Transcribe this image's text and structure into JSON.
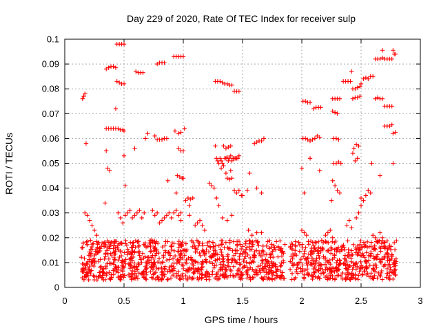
{
  "chart_data": {
    "type": "scatter",
    "title": "Day 229 of 2020, Rate Of TEC Index for receiver sulp",
    "xlabel": "GPS time / hours",
    "ylabel": "ROTI / TECUs",
    "xlim": [
      0,
      3
    ],
    "ylim": [
      0,
      0.1
    ],
    "x_ticks": [
      0,
      0.5,
      1,
      1.5,
      2,
      2.5,
      3
    ],
    "x_tick_labels": [
      "0",
      "0.5",
      "1",
      "1.5",
      "2",
      "2.5",
      "3"
    ],
    "y_ticks": [
      0,
      0.01,
      0.02,
      0.03,
      0.04,
      0.05,
      0.06,
      0.07,
      0.08,
      0.09,
      0.1
    ],
    "y_tick_labels": [
      "0",
      "0.01",
      "0.02",
      "0.03",
      "0.04",
      "0.05",
      "0.06",
      "0.07",
      "0.08",
      "0.09",
      "0.1"
    ],
    "grid": true,
    "marker": "plus",
    "color": "#ff0000",
    "points": [
      [
        0.15,
        0.076
      ],
      [
        0.16,
        0.077
      ],
      [
        0.17,
        0.078
      ],
      [
        0.18,
        0.058
      ],
      [
        0.35,
        0.088
      ],
      [
        0.37,
        0.0885
      ],
      [
        0.39,
        0.089
      ],
      [
        0.41,
        0.089
      ],
      [
        0.43,
        0.0885
      ],
      [
        0.44,
        0.098
      ],
      [
        0.46,
        0.098
      ],
      [
        0.48,
        0.098
      ],
      [
        0.5,
        0.098
      ],
      [
        0.44,
        0.083
      ],
      [
        0.46,
        0.0825
      ],
      [
        0.48,
        0.082
      ],
      [
        0.5,
        0.082
      ],
      [
        0.43,
        0.072
      ],
      [
        0.35,
        0.064
      ],
      [
        0.37,
        0.064
      ],
      [
        0.39,
        0.064
      ],
      [
        0.41,
        0.064
      ],
      [
        0.43,
        0.064
      ],
      [
        0.45,
        0.064
      ],
      [
        0.47,
        0.0635
      ],
      [
        0.49,
        0.0635
      ],
      [
        0.5,
        0.063
      ],
      [
        0.35,
        0.055
      ],
      [
        0.36,
        0.048
      ],
      [
        0.38,
        0.047
      ],
      [
        0.34,
        0.034
      ],
      [
        0.5,
        0.053
      ],
      [
        0.51,
        0.041
      ],
      [
        0.6,
        0.087
      ],
      [
        0.62,
        0.0865
      ],
      [
        0.64,
        0.0865
      ],
      [
        0.66,
        0.0865
      ],
      [
        0.59,
        0.056
      ],
      [
        0.68,
        0.06
      ],
      [
        0.7,
        0.062
      ],
      [
        0.78,
        0.09
      ],
      [
        0.8,
        0.0905
      ],
      [
        0.82,
        0.0905
      ],
      [
        0.84,
        0.0905
      ],
      [
        0.76,
        0.061
      ],
      [
        0.78,
        0.0595
      ],
      [
        0.8,
        0.0595
      ],
      [
        0.82,
        0.0595
      ],
      [
        0.84,
        0.06
      ],
      [
        0.86,
        0.06
      ],
      [
        0.92,
        0.093
      ],
      [
        0.94,
        0.093
      ],
      [
        0.96,
        0.093
      ],
      [
        0.98,
        0.093
      ],
      [
        1.0,
        0.093
      ],
      [
        0.93,
        0.063
      ],
      [
        0.96,
        0.062
      ],
      [
        0.98,
        0.0625
      ],
      [
        1.01,
        0.064
      ],
      [
        0.96,
        0.056
      ],
      [
        0.98,
        0.055
      ],
      [
        1.0,
        0.055
      ],
      [
        0.95,
        0.045
      ],
      [
        0.97,
        0.0445
      ],
      [
        0.99,
        0.044
      ],
      [
        1.0,
        0.044
      ],
      [
        0.87,
        0.043
      ],
      [
        0.94,
        0.038
      ],
      [
        0.98,
        0.03
      ],
      [
        1.02,
        0.035
      ],
      [
        1.04,
        0.036
      ],
      [
        1.06,
        0.0355
      ],
      [
        1.08,
        0.036
      ],
      [
        1.05,
        0.033
      ],
      [
        1.27,
        0.083
      ],
      [
        1.29,
        0.083
      ],
      [
        1.31,
        0.083
      ],
      [
        1.33,
        0.0825
      ],
      [
        1.35,
        0.082
      ],
      [
        1.37,
        0.082
      ],
      [
        1.39,
        0.0815
      ],
      [
        1.41,
        0.0815
      ],
      [
        1.43,
        0.079
      ],
      [
        1.45,
        0.079
      ],
      [
        1.47,
        0.079
      ],
      [
        1.27,
        0.057
      ],
      [
        1.28,
        0.052
      ],
      [
        1.29,
        0.051
      ],
      [
        1.3,
        0.05
      ],
      [
        1.31,
        0.052
      ],
      [
        1.32,
        0.051
      ],
      [
        1.33,
        0.05
      ],
      [
        1.34,
        0.049
      ],
      [
        1.35,
        0.052
      ],
      [
        1.36,
        0.052
      ],
      [
        1.37,
        0.0525
      ],
      [
        1.38,
        0.051
      ],
      [
        1.39,
        0.052
      ],
      [
        1.4,
        0.053
      ],
      [
        1.41,
        0.051
      ],
      [
        1.42,
        0.052
      ],
      [
        1.43,
        0.052
      ],
      [
        1.44,
        0.052
      ],
      [
        1.45,
        0.052
      ],
      [
        1.46,
        0.052
      ],
      [
        1.47,
        0.053
      ],
      [
        1.34,
        0.057
      ],
      [
        1.36,
        0.056
      ],
      [
        1.38,
        0.0565
      ],
      [
        1.4,
        0.057
      ],
      [
        1.37,
        0.044
      ],
      [
        1.39,
        0.0435
      ],
      [
        1.41,
        0.044
      ],
      [
        1.43,
        0.039
      ],
      [
        1.45,
        0.038
      ],
      [
        1.47,
        0.039
      ],
      [
        1.49,
        0.037
      ],
      [
        1.5,
        0.037
      ],
      [
        1.22,
        0.042
      ],
      [
        1.24,
        0.041
      ],
      [
        1.26,
        0.04
      ],
      [
        1.28,
        0.036
      ],
      [
        1.3,
        0.033
      ],
      [
        1.32,
        0.048
      ],
      [
        1.36,
        0.046
      ],
      [
        1.4,
        0.047
      ],
      [
        1.54,
        0.039
      ],
      [
        1.56,
        0.046
      ],
      [
        1.6,
        0.058
      ],
      [
        1.62,
        0.0585
      ],
      [
        1.64,
        0.059
      ],
      [
        1.66,
        0.059
      ],
      [
        1.68,
        0.06
      ],
      [
        1.62,
        0.04
      ],
      [
        1.66,
        0.038
      ],
      [
        2.01,
        0.075
      ],
      [
        2.03,
        0.075
      ],
      [
        2.05,
        0.0745
      ],
      [
        2.07,
        0.0745
      ],
      [
        2.1,
        0.072
      ],
      [
        2.12,
        0.0725
      ],
      [
        2.14,
        0.0725
      ],
      [
        2.16,
        0.0725
      ],
      [
        2.01,
        0.06
      ],
      [
        2.03,
        0.06
      ],
      [
        2.05,
        0.0595
      ],
      [
        2.07,
        0.059
      ],
      [
        2.09,
        0.0595
      ],
      [
        2.11,
        0.06
      ],
      [
        2.13,
        0.061
      ],
      [
        2.15,
        0.0605
      ],
      [
        2.0,
        0.048
      ],
      [
        2.02,
        0.038
      ],
      [
        2.07,
        0.052
      ],
      [
        2.15,
        0.047
      ],
      [
        2.26,
        0.076
      ],
      [
        2.28,
        0.076
      ],
      [
        2.3,
        0.076
      ],
      [
        2.32,
        0.076
      ],
      [
        2.26,
        0.071
      ],
      [
        2.28,
        0.0705
      ],
      [
        2.3,
        0.07
      ],
      [
        2.27,
        0.06
      ],
      [
        2.29,
        0.06
      ],
      [
        2.31,
        0.0595
      ],
      [
        2.27,
        0.05
      ],
      [
        2.29,
        0.05
      ],
      [
        2.31,
        0.0505
      ],
      [
        2.33,
        0.05
      ],
      [
        2.26,
        0.043
      ],
      [
        2.28,
        0.041
      ],
      [
        2.3,
        0.039
      ],
      [
        2.25,
        0.035
      ],
      [
        2.32,
        0.038
      ],
      [
        2.35,
        0.083
      ],
      [
        2.37,
        0.083
      ],
      [
        2.39,
        0.083
      ],
      [
        2.41,
        0.083
      ],
      [
        2.42,
        0.087
      ],
      [
        2.43,
        0.08
      ],
      [
        2.45,
        0.08
      ],
      [
        2.47,
        0.0805
      ],
      [
        2.49,
        0.081
      ],
      [
        2.43,
        0.076
      ],
      [
        2.45,
        0.0765
      ],
      [
        2.47,
        0.0765
      ],
      [
        2.49,
        0.077
      ],
      [
        2.5,
        0.082
      ],
      [
        2.52,
        0.084
      ],
      [
        2.54,
        0.0845
      ],
      [
        2.56,
        0.084
      ],
      [
        2.58,
        0.085
      ],
      [
        2.6,
        0.085
      ],
      [
        2.43,
        0.054
      ],
      [
        2.44,
        0.056
      ],
      [
        2.46,
        0.0575
      ],
      [
        2.48,
        0.057
      ],
      [
        2.47,
        0.052
      ],
      [
        2.45,
        0.051
      ],
      [
        2.5,
        0.036
      ],
      [
        2.52,
        0.035
      ],
      [
        2.54,
        0.037
      ],
      [
        2.56,
        0.039
      ],
      [
        2.58,
        0.038
      ],
      [
        2.5,
        0.033
      ],
      [
        2.59,
        0.05
      ],
      [
        2.62,
        0.076
      ],
      [
        2.64,
        0.0765
      ],
      [
        2.66,
        0.076
      ],
      [
        2.68,
        0.076
      ],
      [
        2.62,
        0.092
      ],
      [
        2.64,
        0.092
      ],
      [
        2.66,
        0.092
      ],
      [
        2.68,
        0.0925
      ],
      [
        2.7,
        0.092
      ],
      [
        2.72,
        0.092
      ],
      [
        2.74,
        0.092
      ],
      [
        2.76,
        0.092
      ],
      [
        2.68,
        0.0955
      ],
      [
        2.77,
        0.0955
      ],
      [
        2.78,
        0.094
      ],
      [
        2.79,
        0.094
      ],
      [
        2.7,
        0.073
      ],
      [
        2.72,
        0.073
      ],
      [
        2.74,
        0.073
      ],
      [
        2.76,
        0.073
      ],
      [
        2.7,
        0.065
      ],
      [
        2.72,
        0.065
      ],
      [
        2.74,
        0.065
      ],
      [
        2.76,
        0.0655
      ],
      [
        2.77,
        0.062
      ],
      [
        2.79,
        0.0625
      ],
      [
        2.77,
        0.05
      ],
      [
        2.66,
        0.045
      ],
      [
        0.17,
        0.03
      ],
      [
        0.19,
        0.029
      ],
      [
        0.21,
        0.027
      ],
      [
        0.23,
        0.025
      ],
      [
        0.25,
        0.023
      ],
      [
        0.27,
        0.021
      ],
      [
        0.45,
        0.03
      ],
      [
        0.47,
        0.028
      ],
      [
        0.49,
        0.026
      ],
      [
        0.51,
        0.029
      ],
      [
        0.53,
        0.03
      ],
      [
        0.55,
        0.031
      ],
      [
        0.57,
        0.028
      ],
      [
        0.59,
        0.029
      ],
      [
        0.61,
        0.03
      ],
      [
        0.63,
        0.031
      ],
      [
        0.65,
        0.028
      ],
      [
        0.67,
        0.03
      ],
      [
        0.74,
        0.031
      ],
      [
        0.76,
        0.029
      ],
      [
        0.78,
        0.03
      ],
      [
        0.8,
        0.026
      ],
      [
        0.82,
        0.027
      ],
      [
        0.84,
        0.028
      ],
      [
        0.86,
        0.029
      ],
      [
        0.88,
        0.03
      ],
      [
        0.9,
        0.028
      ],
      [
        0.92,
        0.03
      ],
      [
        0.94,
        0.031
      ],
      [
        0.96,
        0.029
      ],
      [
        0.98,
        0.027
      ],
      [
        1.05,
        0.029
      ],
      [
        1.1,
        0.025
      ],
      [
        1.12,
        0.026
      ],
      [
        1.14,
        0.027
      ],
      [
        1.16,
        0.025
      ],
      [
        1.18,
        0.023
      ],
      [
        1.33,
        0.028
      ],
      [
        1.37,
        0.027
      ],
      [
        1.41,
        0.029
      ],
      [
        1.55,
        0.023
      ],
      [
        1.58,
        0.021
      ],
      [
        1.62,
        0.022
      ],
      [
        1.66,
        0.022
      ],
      [
        2.0,
        0.023
      ],
      [
        2.02,
        0.022
      ],
      [
        2.04,
        0.021
      ],
      [
        2.2,
        0.021
      ],
      [
        2.22,
        0.022
      ],
      [
        2.24,
        0.023
      ],
      [
        2.26,
        0.02
      ],
      [
        2.38,
        0.025
      ],
      [
        2.4,
        0.027
      ],
      [
        2.42,
        0.024
      ],
      [
        2.46,
        0.028
      ],
      [
        2.48,
        0.03
      ],
      [
        2.6,
        0.021
      ],
      [
        2.62,
        0.02
      ],
      [
        2.66,
        0.022
      ],
      [
        2.68,
        0.02
      ],
      [
        2.7,
        0.018
      ],
      [
        2.74,
        0.017
      ],
      [
        2.78,
        0.018
      ]
    ],
    "dense_band": {
      "x_ranges": [
        [
          0.14,
          1.86
        ],
        [
          1.9,
          2.8
        ]
      ],
      "y_range": [
        0.003,
        0.019
      ]
    }
  }
}
